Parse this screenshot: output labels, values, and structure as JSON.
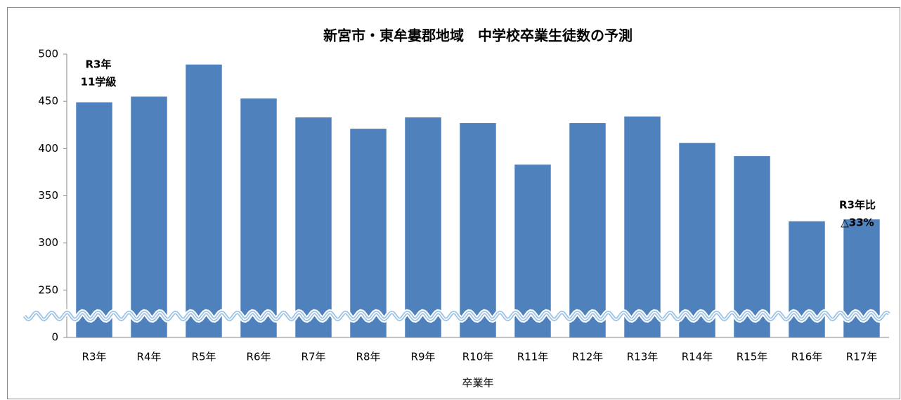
{
  "chart_data": {
    "type": "bar",
    "title": "新宮市・東牟婁郡地域　中学校卒業生徒数の予測",
    "x_label": "卒業年",
    "categories": [
      "R3年",
      "R4年",
      "R5年",
      "R6年",
      "R7年",
      "R8年",
      "R9年",
      "R10年",
      "R11年",
      "R12年",
      "R13年",
      "R14年",
      "R15年",
      "R16年",
      "R17年"
    ],
    "values": [
      449,
      455,
      489,
      453,
      433,
      421,
      433,
      427,
      383,
      427,
      434,
      406,
      392,
      323,
      325
    ],
    "color": "#4f81bd",
    "ylim": [
      0,
      500
    ],
    "yticks": [
      0,
      250,
      300,
      350,
      400,
      450,
      500
    ],
    "axis_break": true,
    "grid": false,
    "annotations": [
      [
        "R3年",
        "11学級"
      ],
      [
        "R3年比",
        "△33%"
      ]
    ]
  }
}
